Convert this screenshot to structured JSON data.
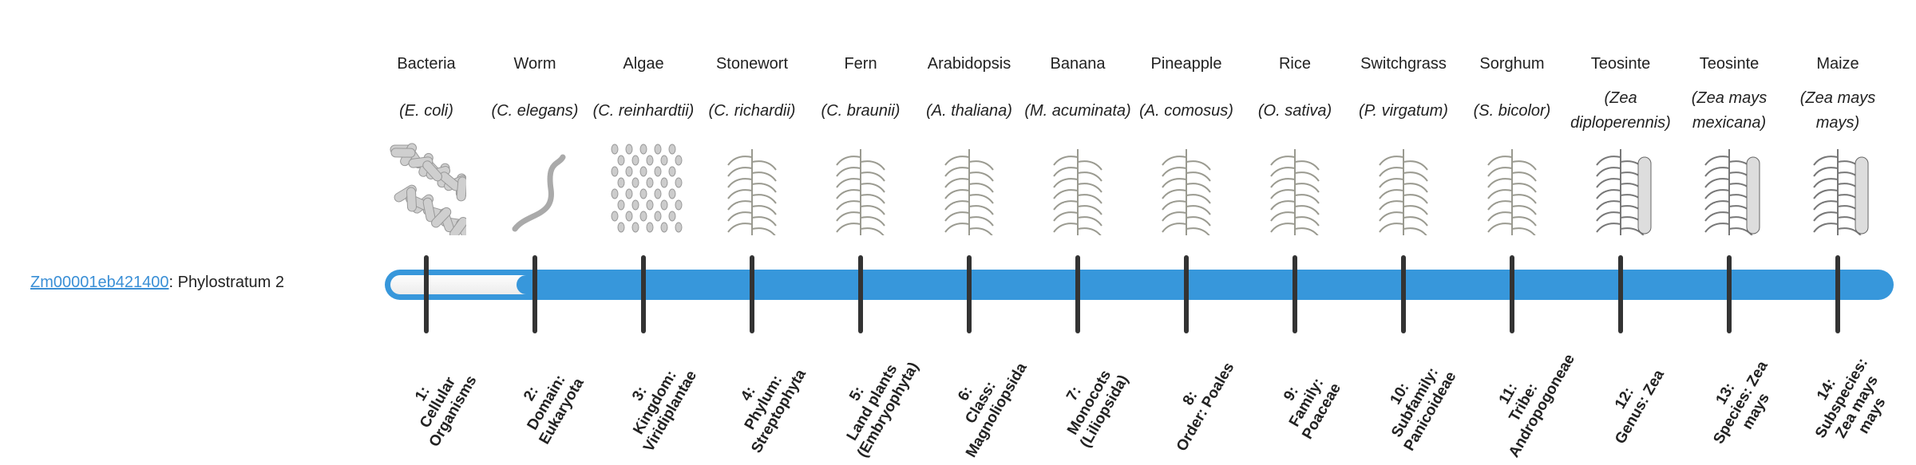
{
  "gene": {
    "id": "Zm00001eb421400",
    "suffix": ": Phylostratum 2"
  },
  "bar": {
    "color": "#3797db",
    "current_stratum": 2,
    "total_strata": 14
  },
  "strata": [
    {
      "common": "Bacteria",
      "scientific": "(E. coli)",
      "icon": "bacteria-image",
      "num": "1:",
      "rank": "Cellular Organisms"
    },
    {
      "common": "Worm",
      "scientific": "(C. elegans)",
      "icon": "worm-image",
      "num": "2:",
      "rank": "Domain: Eukaryota"
    },
    {
      "common": "Algae",
      "scientific": "(C. reinhardtii)",
      "icon": "algae-image",
      "num": "3:",
      "rank": "Kingdom: Viridiplantae"
    },
    {
      "common": "Stonewort",
      "scientific": "(C. richardii)",
      "icon": "stonewort-image",
      "num": "4:",
      "rank": "Phylum: Streptophyta"
    },
    {
      "common": "Fern",
      "scientific": "(C. braunii)",
      "icon": "fern-image",
      "num": "5:",
      "rank": "Land plants (Embryophyta)"
    },
    {
      "common": "Arabidopsis",
      "scientific": "(A. thaliana)",
      "icon": "arabidopsis-image",
      "num": "6:",
      "rank": "Class: Magnoliopsida"
    },
    {
      "common": "Banana",
      "scientific": "(M. acuminata)",
      "icon": "banana-image",
      "num": "7:",
      "rank": "Monocots (Liliopsida)"
    },
    {
      "common": "Pineapple",
      "scientific": "(A. comosus)",
      "icon": "pineapple-image",
      "num": "8:",
      "rank": "Order: Poales"
    },
    {
      "common": "Rice",
      "scientific": "(O. sativa)",
      "icon": "rice-image",
      "num": "9:",
      "rank": "Family: Poaceae"
    },
    {
      "common": "Switchgrass",
      "scientific": "(P. virgatum)",
      "icon": "switchgrass-image",
      "num": "10:",
      "rank": "Subfamily: Panicoideae"
    },
    {
      "common": "Sorghum",
      "scientific": "(S. bicolor)",
      "icon": "sorghum-image",
      "num": "11:",
      "rank": "Tribe: Andropogoneae"
    },
    {
      "common": "Teosinte",
      "scientific": "(Zea diploperennis)",
      "icon": "teosinte-image",
      "num": "12:",
      "rank": "Genus: Zea"
    },
    {
      "common": "Teosinte",
      "scientific": "(Zea mays mexicana)",
      "icon": "teosinte-mexicana-image",
      "num": "13:",
      "rank": "Species: Zea mays"
    },
    {
      "common": "Maize",
      "scientific": "(Zea mays mays)",
      "icon": "maize-image",
      "num": "14:",
      "rank": "Subspecies: Zea mays mays"
    }
  ]
}
